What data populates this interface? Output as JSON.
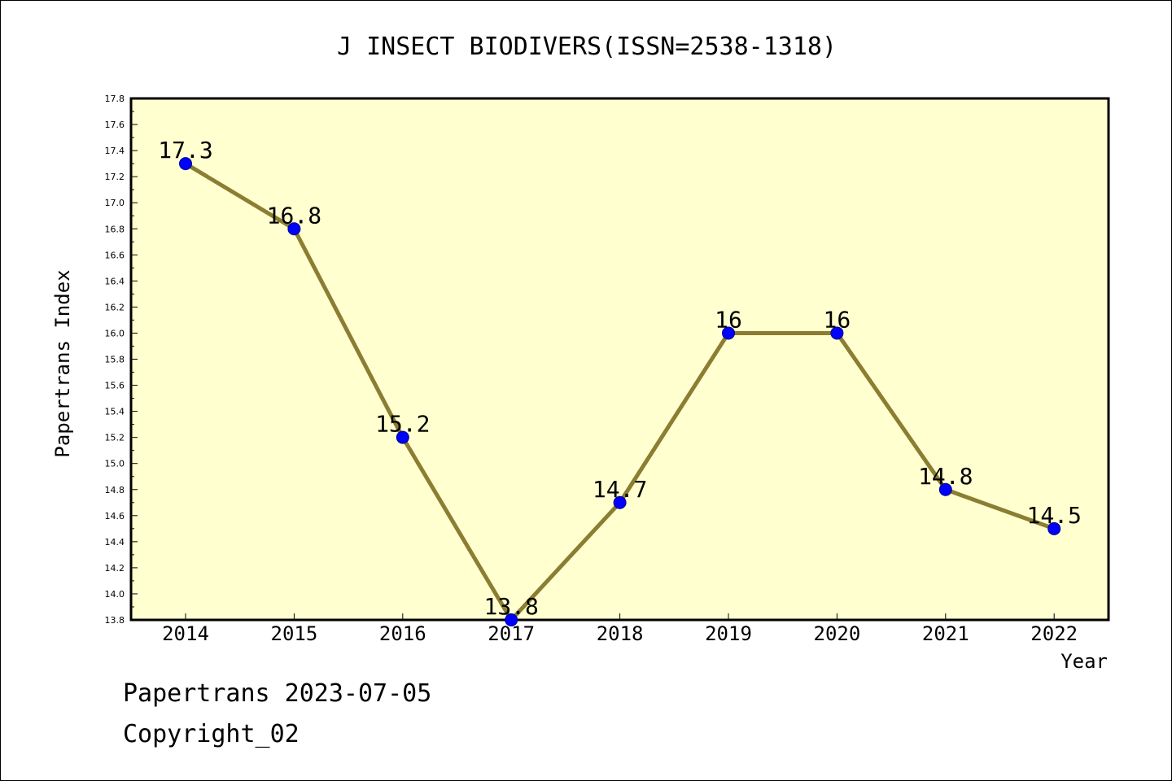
{
  "chart_data": {
    "type": "line",
    "title": "J INSECT BIODIVERS(ISSN=2538-1318)",
    "xlabel": "Year",
    "ylabel": "Papertrans Index",
    "categories": [
      "2014",
      "2015",
      "2016",
      "2017",
      "2018",
      "2019",
      "2020",
      "2021",
      "2022"
    ],
    "series": [
      {
        "values": [
          17.3,
          16.8,
          15.2,
          13.8,
          14.7,
          16.0,
          16.0,
          14.8,
          14.5
        ],
        "data_labels": [
          "17.3",
          "16.8",
          "15.2",
          "13.8",
          "14.7",
          "16",
          "16",
          "14.8",
          "14.5"
        ]
      }
    ],
    "ylim": [
      13.8,
      17.8
    ],
    "yticks": [
      "13.8",
      "14.0",
      "14.2",
      "14.4",
      "14.6",
      "14.8",
      "15.0",
      "15.2",
      "15.4",
      "15.6",
      "15.8",
      "16.0",
      "16.2",
      "16.4",
      "16.6",
      "16.8",
      "17.0",
      "17.2",
      "17.4",
      "17.6",
      "17.8"
    ],
    "grid": false,
    "legend": "none",
    "colors": {
      "plot_background": "#ffffd0",
      "line": "#8b7d32",
      "marker_fill": "#0000ff",
      "marker_edge": "#00008b"
    }
  },
  "footer": {
    "line1": "Papertrans 2023-07-05",
    "line2": "Copyright_02"
  }
}
